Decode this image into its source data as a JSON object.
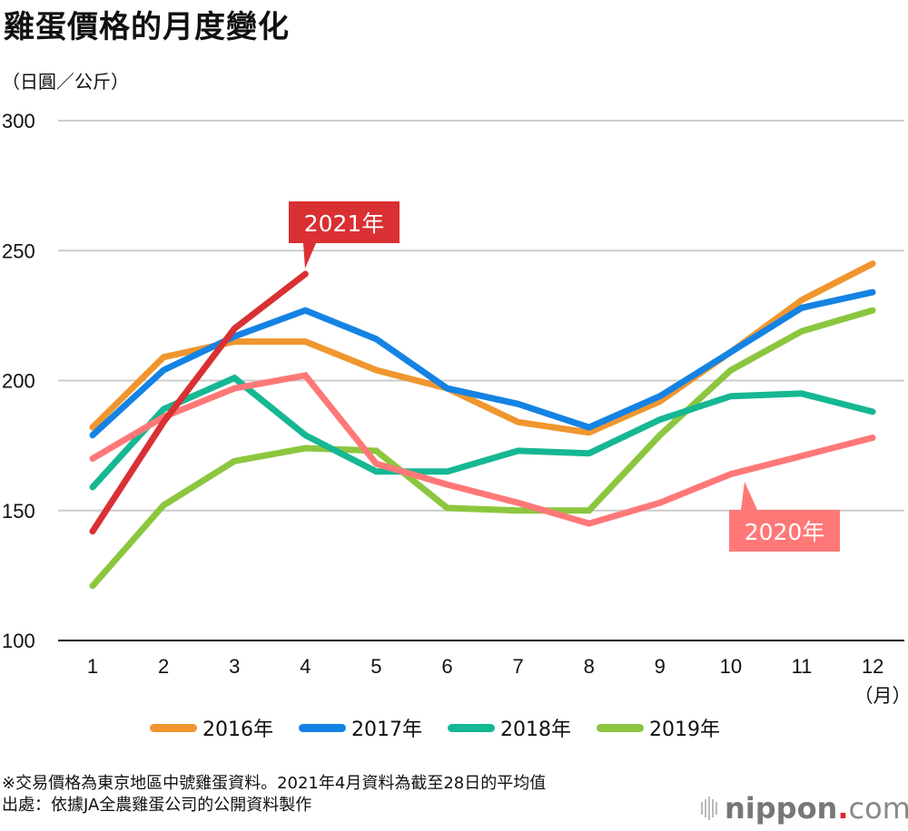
{
  "header": {
    "title": "雞蛋價格的月度變化",
    "unit": "（日圓／公斤）"
  },
  "chart_data": {
    "type": "line",
    "title": "雞蛋價格的月度變化",
    "ylabel": "（日圓／公斤）",
    "xlabel": "（月）",
    "ylim": [
      100,
      300
    ],
    "yticks": [
      100,
      150,
      200,
      250,
      300
    ],
    "x": [
      1,
      2,
      3,
      4,
      5,
      6,
      7,
      8,
      9,
      10,
      11,
      12
    ],
    "grid": true,
    "legend_position": "bottom-center",
    "series": [
      {
        "name": "2016年",
        "color": "#F0962E",
        "in_legend": true,
        "values": [
          182,
          209,
          215,
          215,
          204,
          197,
          184,
          180,
          192,
          211,
          231,
          245
        ]
      },
      {
        "name": "2017年",
        "color": "#1483E3",
        "in_legend": true,
        "values": [
          179,
          204,
          217,
          227,
          216,
          197,
          191,
          182,
          194,
          211,
          228,
          234
        ]
      },
      {
        "name": "2018年",
        "color": "#16B793",
        "in_legend": true,
        "values": [
          159,
          189,
          201,
          179,
          165,
          165,
          173,
          172,
          185,
          194,
          195,
          188
        ]
      },
      {
        "name": "2019年",
        "color": "#8CC63F",
        "in_legend": true,
        "values": [
          121,
          152,
          169,
          174,
          173,
          151,
          150,
          150,
          179,
          204,
          219,
          227
        ]
      },
      {
        "name": "2020年",
        "color": "#FF7878",
        "in_legend": false,
        "callout": true,
        "values": [
          170,
          186,
          197,
          202,
          168,
          160,
          153,
          145,
          153,
          164,
          171,
          178
        ]
      },
      {
        "name": "2021年",
        "color": "#D93033",
        "in_legend": false,
        "callout": true,
        "values": [
          142,
          184,
          220,
          241,
          null,
          null,
          null,
          null,
          null,
          null,
          null,
          null
        ]
      }
    ],
    "annotations": [
      {
        "text": "2021年",
        "series": "2021年",
        "anchor_month": 4,
        "color": "#D93033"
      },
      {
        "text": "2020年",
        "series": "2020年",
        "anchor_month": 10,
        "color": "#FF7878"
      }
    ]
  },
  "footer": {
    "note": "※交易價格為東京地區中號雞蛋資料。2021年4月資料為截至28日的平均值",
    "source": "出處：依據JA全農雞蛋公司的公開資料製作"
  },
  "logo": {
    "name": "nippon",
    "dot": ".",
    "suffix": "com",
    "dot_color": "#E3242B"
  }
}
